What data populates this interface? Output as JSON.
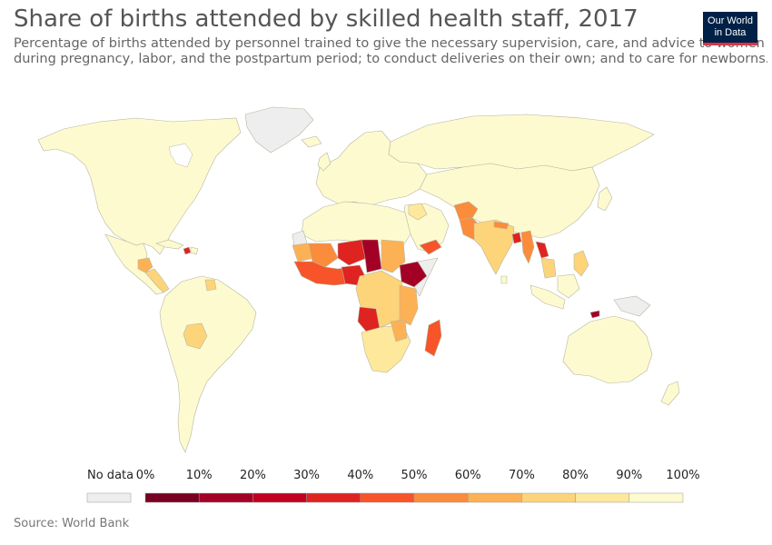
{
  "header": {
    "title": "Share of births attended by skilled health staff, 2017",
    "subtitle_line1": "Percentage of births attended by personnel trained to give the necessary supervision, care, and advice to women",
    "subtitle_line2": "during pregnancy, labor, and the postpartum period; to conduct deliveries on their own; and to care for newborns."
  },
  "logo": {
    "line1": "Our World",
    "line2": "in Data"
  },
  "legend": {
    "nodata_label": "No data",
    "nodata_color": "#eeeeee",
    "ticks": [
      "0%",
      "10%",
      "20%",
      "30%",
      "40%",
      "50%",
      "60%",
      "70%",
      "80%",
      "90%",
      "100%"
    ],
    "colors": [
      "#7a0021",
      "#a30026",
      "#c1001f",
      "#df2320",
      "#f7542a",
      "#fb8c3c",
      "#fdb155",
      "#fdd479",
      "#fee89b",
      "#fefad0"
    ]
  },
  "source": "Source: World Bank",
  "palette": {
    "high": "#fefad0",
    "upper": "#fee89b",
    "mid": "#fdd479",
    "midlow": "#fdb155",
    "low": "#fb8c3c",
    "lower": "#f7542a",
    "verylow": "#df2320",
    "deep": "#a30026",
    "nodata": "#eeeeee"
  }
}
